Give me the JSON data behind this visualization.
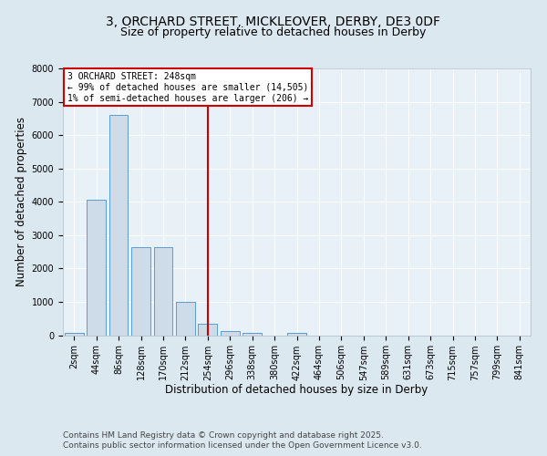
{
  "title_line1": "3, ORCHARD STREET, MICKLEOVER, DERBY, DE3 0DF",
  "title_line2": "Size of property relative to detached houses in Derby",
  "xlabel": "Distribution of detached houses by size in Derby",
  "ylabel": "Number of detached properties",
  "bar_categories": [
    "2sqm",
    "44sqm",
    "86sqm",
    "128sqm",
    "170sqm",
    "212sqm",
    "254sqm",
    "296sqm",
    "338sqm",
    "380sqm",
    "422sqm",
    "464sqm",
    "506sqm",
    "547sqm",
    "589sqm",
    "631sqm",
    "673sqm",
    "715sqm",
    "757sqm",
    "799sqm",
    "841sqm"
  ],
  "bar_values": [
    75,
    4050,
    6600,
    2650,
    2650,
    1000,
    350,
    130,
    80,
    0,
    70,
    0,
    0,
    0,
    0,
    0,
    0,
    0,
    0,
    0,
    0
  ],
  "bar_color": "#cddce8",
  "bar_edge_color": "#5b9bd5",
  "vline_x_index": 6,
  "vline_color": "#cc0000",
  "annotation_text": "3 ORCHARD STREET: 248sqm\n← 99% of detached houses are smaller (14,505)\n1% of semi-detached houses are larger (206) →",
  "annotation_box_color": "#cc0000",
  "ylim": [
    0,
    8000
  ],
  "yticks": [
    0,
    1000,
    2000,
    3000,
    4000,
    5000,
    6000,
    7000,
    8000
  ],
  "background_color": "#dce8f0",
  "plot_bg_color": "#e8f0f8",
  "footer_line1": "Contains HM Land Registry data © Crown copyright and database right 2025.",
  "footer_line2": "Contains public sector information licensed under the Open Government Licence v3.0.",
  "title_fontsize": 10,
  "subtitle_fontsize": 9,
  "axis_label_fontsize": 8.5,
  "tick_fontsize": 7,
  "annotation_fontsize": 7,
  "footer_fontsize": 6.5
}
